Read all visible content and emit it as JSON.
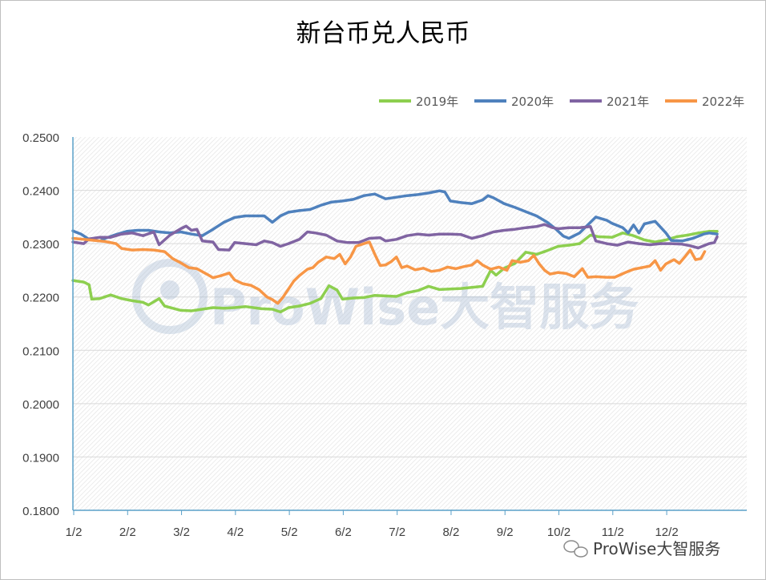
{
  "chart_data": {
    "type": "line",
    "title": "新台币兑人民币",
    "xlabel": "",
    "ylabel": "",
    "ylim": [
      0.18,
      0.25
    ],
    "y_ticks": [
      "0.2500",
      "0.2400",
      "0.2300",
      "0.2200",
      "0.2100",
      "0.2000",
      "0.1900",
      "0.1800"
    ],
    "categories": [
      "1/2",
      "2/2",
      "3/2",
      "4/2",
      "5/2",
      "6/2",
      "7/2",
      "8/2",
      "9/2",
      "10/2",
      "11/2",
      "12/2"
    ],
    "legend_position": "top-right",
    "grid": true,
    "series": [
      {
        "name": "2019年",
        "color": "#8dcf4f",
        "points": [
          [
            0,
            0.2231
          ],
          [
            0.2,
            0.2228
          ],
          [
            0.3,
            0.2223
          ],
          [
            0.35,
            0.2196
          ],
          [
            0.5,
            0.2197
          ],
          [
            0.7,
            0.2204
          ],
          [
            0.9,
            0.2197
          ],
          [
            1.1,
            0.2193
          ],
          [
            1.3,
            0.219
          ],
          [
            1.4,
            0.2185
          ],
          [
            1.6,
            0.2197
          ],
          [
            1.7,
            0.2183
          ],
          [
            2.0,
            0.2175
          ],
          [
            2.2,
            0.2174
          ],
          [
            2.4,
            0.2177
          ],
          [
            2.6,
            0.218
          ],
          [
            2.8,
            0.2179
          ],
          [
            3.0,
            0.218
          ],
          [
            3.2,
            0.2182
          ],
          [
            3.5,
            0.2178
          ],
          [
            3.7,
            0.2177
          ],
          [
            3.85,
            0.2172
          ],
          [
            4.0,
            0.218
          ],
          [
            4.2,
            0.2183
          ],
          [
            4.4,
            0.2188
          ],
          [
            4.6,
            0.2197
          ],
          [
            4.75,
            0.2221
          ],
          [
            4.9,
            0.2213
          ],
          [
            5.0,
            0.2196
          ],
          [
            5.2,
            0.2198
          ],
          [
            5.4,
            0.2199
          ],
          [
            5.6,
            0.2203
          ],
          [
            5.8,
            0.2202
          ],
          [
            6.0,
            0.2201
          ],
          [
            6.2,
            0.2208
          ],
          [
            6.4,
            0.2212
          ],
          [
            6.6,
            0.222
          ],
          [
            6.8,
            0.2214
          ],
          [
            7.0,
            0.2215
          ],
          [
            7.2,
            0.2216
          ],
          [
            7.4,
            0.2218
          ],
          [
            7.6,
            0.222
          ],
          [
            7.75,
            0.225
          ],
          [
            7.85,
            0.2241
          ],
          [
            8.0,
            0.2254
          ],
          [
            8.2,
            0.2263
          ],
          [
            8.4,
            0.2284
          ],
          [
            8.6,
            0.228
          ],
          [
            8.8,
            0.2287
          ],
          [
            9.0,
            0.2295
          ],
          [
            9.2,
            0.2297
          ],
          [
            9.4,
            0.23
          ],
          [
            9.6,
            0.2316
          ],
          [
            9.75,
            0.2313
          ],
          [
            10.0,
            0.2312
          ],
          [
            10.2,
            0.232
          ],
          [
            10.4,
            0.2315
          ],
          [
            10.6,
            0.2307
          ],
          [
            10.8,
            0.2303
          ],
          [
            11.0,
            0.2307
          ],
          [
            11.2,
            0.2313
          ],
          [
            11.4,
            0.2316
          ],
          [
            11.6,
            0.232
          ],
          [
            11.8,
            0.2323
          ],
          [
            11.95,
            0.2323
          ]
        ]
      },
      {
        "name": "2020年",
        "color": "#4f81bd",
        "points": [
          [
            0,
            0.2324
          ],
          [
            0.15,
            0.2318
          ],
          [
            0.3,
            0.2308
          ],
          [
            0.5,
            0.2305
          ],
          [
            0.6,
            0.231
          ],
          [
            0.8,
            0.2317
          ],
          [
            1.0,
            0.2323
          ],
          [
            1.2,
            0.2325
          ],
          [
            1.4,
            0.2325
          ],
          [
            1.6,
            0.2322
          ],
          [
            1.8,
            0.232
          ],
          [
            2.0,
            0.2322
          ],
          [
            2.2,
            0.2318
          ],
          [
            2.4,
            0.2315
          ],
          [
            2.6,
            0.2327
          ],
          [
            2.8,
            0.234
          ],
          [
            3.0,
            0.2349
          ],
          [
            3.2,
            0.2352
          ],
          [
            3.4,
            0.2352
          ],
          [
            3.55,
            0.2352
          ],
          [
            3.7,
            0.234
          ],
          [
            3.85,
            0.2352
          ],
          [
            4.0,
            0.2359
          ],
          [
            4.2,
            0.2362
          ],
          [
            4.4,
            0.2364
          ],
          [
            4.6,
            0.2372
          ],
          [
            4.8,
            0.2378
          ],
          [
            5.0,
            0.238
          ],
          [
            5.2,
            0.2383
          ],
          [
            5.4,
            0.239
          ],
          [
            5.6,
            0.2393
          ],
          [
            5.8,
            0.2384
          ],
          [
            6.0,
            0.2387
          ],
          [
            6.2,
            0.239
          ],
          [
            6.4,
            0.2392
          ],
          [
            6.6,
            0.2395
          ],
          [
            6.8,
            0.2399
          ],
          [
            6.9,
            0.2397
          ],
          [
            7.0,
            0.238
          ],
          [
            7.2,
            0.2377
          ],
          [
            7.4,
            0.2375
          ],
          [
            7.6,
            0.2382
          ],
          [
            7.7,
            0.239
          ],
          [
            7.8,
            0.2386
          ],
          [
            8.0,
            0.2375
          ],
          [
            8.2,
            0.2368
          ],
          [
            8.4,
            0.236
          ],
          [
            8.6,
            0.2352
          ],
          [
            8.8,
            0.234
          ],
          [
            8.95,
            0.2328
          ],
          [
            9.1,
            0.2314
          ],
          [
            9.2,
            0.231
          ],
          [
            9.4,
            0.232
          ],
          [
            9.6,
            0.234
          ],
          [
            9.7,
            0.235
          ],
          [
            9.9,
            0.2344
          ],
          [
            10.0,
            0.2338
          ],
          [
            10.2,
            0.233
          ],
          [
            10.3,
            0.232
          ],
          [
            10.4,
            0.2335
          ],
          [
            10.5,
            0.232
          ],
          [
            10.6,
            0.2337
          ],
          [
            10.8,
            0.2342
          ],
          [
            11.0,
            0.232
          ],
          [
            11.1,
            0.2306
          ],
          [
            11.3,
            0.2305
          ],
          [
            11.5,
            0.231
          ],
          [
            11.7,
            0.2318
          ],
          [
            11.8,
            0.232
          ],
          [
            11.95,
            0.2318
          ]
        ]
      },
      {
        "name": "2021年",
        "color": "#8064a2",
        "points": [
          [
            0,
            0.2303
          ],
          [
            0.2,
            0.23
          ],
          [
            0.3,
            0.2309
          ],
          [
            0.5,
            0.2312
          ],
          [
            0.7,
            0.2312
          ],
          [
            0.9,
            0.2318
          ],
          [
            1.1,
            0.232
          ],
          [
            1.3,
            0.2315
          ],
          [
            1.5,
            0.2322
          ],
          [
            1.6,
            0.2298
          ],
          [
            1.8,
            0.2316
          ],
          [
            2.0,
            0.2328
          ],
          [
            2.1,
            0.2333
          ],
          [
            2.2,
            0.2325
          ],
          [
            2.3,
            0.2327
          ],
          [
            2.4,
            0.2305
          ],
          [
            2.6,
            0.2303
          ],
          [
            2.7,
            0.2289
          ],
          [
            2.9,
            0.2288
          ],
          [
            3.0,
            0.2302
          ],
          [
            3.2,
            0.23
          ],
          [
            3.4,
            0.2298
          ],
          [
            3.55,
            0.2305
          ],
          [
            3.7,
            0.2302
          ],
          [
            3.85,
            0.2295
          ],
          [
            4.0,
            0.23
          ],
          [
            4.2,
            0.2308
          ],
          [
            4.35,
            0.2322
          ],
          [
            4.5,
            0.232
          ],
          [
            4.7,
            0.2316
          ],
          [
            4.9,
            0.2305
          ],
          [
            5.1,
            0.2302
          ],
          [
            5.3,
            0.2302
          ],
          [
            5.5,
            0.231
          ],
          [
            5.7,
            0.2311
          ],
          [
            5.8,
            0.2305
          ],
          [
            6.0,
            0.2308
          ],
          [
            6.2,
            0.2315
          ],
          [
            6.4,
            0.2318
          ],
          [
            6.6,
            0.2316
          ],
          [
            6.8,
            0.2318
          ],
          [
            7.0,
            0.2318
          ],
          [
            7.2,
            0.2317
          ],
          [
            7.4,
            0.231
          ],
          [
            7.6,
            0.2315
          ],
          [
            7.8,
            0.2322
          ],
          [
            8.0,
            0.2325
          ],
          [
            8.2,
            0.2327
          ],
          [
            8.4,
            0.233
          ],
          [
            8.6,
            0.2332
          ],
          [
            8.75,
            0.2336
          ],
          [
            8.9,
            0.233
          ],
          [
            9.0,
            0.2328
          ],
          [
            9.2,
            0.233
          ],
          [
            9.4,
            0.233
          ],
          [
            9.6,
            0.2332
          ],
          [
            9.7,
            0.2305
          ],
          [
            9.9,
            0.23
          ],
          [
            10.1,
            0.2297
          ],
          [
            10.3,
            0.2303
          ],
          [
            10.5,
            0.23
          ],
          [
            10.7,
            0.2298
          ],
          [
            10.9,
            0.23
          ],
          [
            11.1,
            0.23
          ],
          [
            11.3,
            0.2299
          ],
          [
            11.45,
            0.2296
          ],
          [
            11.6,
            0.2292
          ],
          [
            11.8,
            0.23
          ],
          [
            11.9,
            0.2302
          ],
          [
            11.95,
            0.2313
          ]
        ]
      },
      {
        "name": "2022年",
        "color": "#f79646",
        "points": [
          [
            0,
            0.231
          ],
          [
            0.2,
            0.2308
          ],
          [
            0.4,
            0.2306
          ],
          [
            0.6,
            0.2304
          ],
          [
            0.8,
            0.23
          ],
          [
            0.9,
            0.2291
          ],
          [
            1.1,
            0.2288
          ],
          [
            1.3,
            0.2289
          ],
          [
            1.5,
            0.2288
          ],
          [
            1.7,
            0.2285
          ],
          [
            1.85,
            0.2272
          ],
          [
            2.0,
            0.2264
          ],
          [
            2.15,
            0.2255
          ],
          [
            2.3,
            0.2253
          ],
          [
            2.5,
            0.2242
          ],
          [
            2.6,
            0.2236
          ],
          [
            2.75,
            0.224
          ],
          [
            2.9,
            0.2245
          ],
          [
            3.0,
            0.2232
          ],
          [
            3.15,
            0.2225
          ],
          [
            3.3,
            0.2222
          ],
          [
            3.45,
            0.2214
          ],
          [
            3.6,
            0.22
          ],
          [
            3.7,
            0.2195
          ],
          [
            3.8,
            0.2188
          ],
          [
            3.9,
            0.22
          ],
          [
            4.0,
            0.2215
          ],
          [
            4.1,
            0.223
          ],
          [
            4.2,
            0.224
          ],
          [
            4.35,
            0.2252
          ],
          [
            4.45,
            0.2255
          ],
          [
            4.55,
            0.2265
          ],
          [
            4.7,
            0.2275
          ],
          [
            4.85,
            0.2272
          ],
          [
            4.95,
            0.228
          ],
          [
            5.05,
            0.2262
          ],
          [
            5.15,
            0.2275
          ],
          [
            5.25,
            0.2295
          ],
          [
            5.4,
            0.23
          ],
          [
            5.5,
            0.2303
          ],
          [
            5.6,
            0.228
          ],
          [
            5.7,
            0.2259
          ],
          [
            5.8,
            0.226
          ],
          [
            5.9,
            0.2266
          ],
          [
            6.0,
            0.2275
          ],
          [
            6.1,
            0.2255
          ],
          [
            6.2,
            0.2258
          ],
          [
            6.35,
            0.2251
          ],
          [
            6.5,
            0.2254
          ],
          [
            6.65,
            0.2248
          ],
          [
            6.8,
            0.225
          ],
          [
            6.95,
            0.2256
          ],
          [
            7.1,
            0.2253
          ],
          [
            7.25,
            0.2257
          ],
          [
            7.4,
            0.226
          ],
          [
            7.5,
            0.2268
          ],
          [
            7.6,
            0.226
          ],
          [
            7.75,
            0.2252
          ],
          [
            7.9,
            0.2256
          ],
          [
            8.05,
            0.225
          ],
          [
            8.15,
            0.2268
          ],
          [
            8.3,
            0.2265
          ],
          [
            8.45,
            0.2268
          ],
          [
            8.55,
            0.2278
          ],
          [
            8.65,
            0.2262
          ],
          [
            8.75,
            0.225
          ],
          [
            8.85,
            0.2243
          ],
          [
            9.0,
            0.2246
          ],
          [
            9.15,
            0.2244
          ],
          [
            9.3,
            0.2238
          ],
          [
            9.45,
            0.2253
          ],
          [
            9.55,
            0.2237
          ],
          [
            9.7,
            0.2238
          ],
          [
            9.9,
            0.2237
          ],
          [
            10.05,
            0.2237
          ],
          [
            10.25,
            0.2246
          ],
          [
            10.4,
            0.2252
          ],
          [
            10.55,
            0.2255
          ],
          [
            10.7,
            0.2258
          ],
          [
            10.8,
            0.2268
          ],
          [
            10.9,
            0.225
          ],
          [
            11.0,
            0.2262
          ],
          [
            11.15,
            0.227
          ],
          [
            11.25,
            0.2263
          ],
          [
            11.35,
            0.2275
          ],
          [
            11.45,
            0.2288
          ],
          [
            11.55,
            0.227
          ],
          [
            11.65,
            0.2272
          ],
          [
            11.72,
            0.2285
          ]
        ]
      }
    ]
  },
  "watermark": {
    "logo_text": "ProWise大智服务"
  },
  "footer": {
    "source_text": "ProWise大智服务",
    "icon": "wechat-icon"
  }
}
